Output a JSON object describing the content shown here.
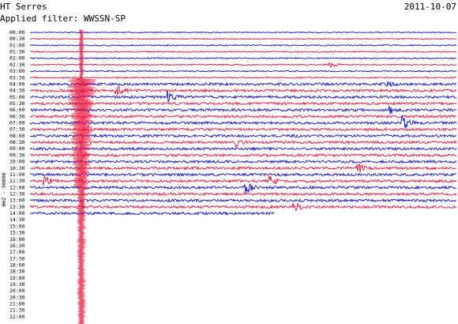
{
  "header": {
    "station": "HT Serres",
    "date": "2011-10-07",
    "filter": "Applied filter: WWSSN-SP"
  },
  "channel_label": "HHZ - 50000",
  "trace_colors": [
    "#1010d0",
    "#e8153c"
  ],
  "time_labels": [
    "00:00",
    "00:30",
    "01:00",
    "01:30",
    "02:00",
    "02:30",
    "03:00",
    "03:30",
    "04:00",
    "04:30",
    "05:00",
    "05:30",
    "06:00",
    "06:30",
    "07:00",
    "07:30",
    "08:00",
    "08:30",
    "09:00",
    "09:30",
    "10:00",
    "10:30",
    "11:00",
    "11:30",
    "12:00",
    "12:30",
    "13:00",
    "13:30",
    "14:00",
    "14:30",
    "15:00",
    "15:30",
    "16:00",
    "16:30",
    "17:00",
    "17:30",
    "18:00",
    "18:30",
    "19:00",
    "19:30",
    "20:00",
    "20:30",
    "21:00",
    "21:30",
    "22:00"
  ]
}
